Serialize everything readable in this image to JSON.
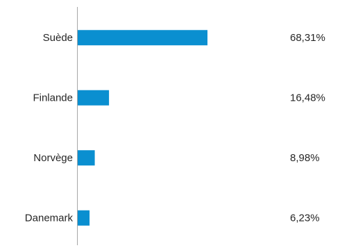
{
  "chart_data": {
    "type": "bar",
    "orientation": "horizontal",
    "categories": [
      "Suède",
      "Finlande",
      "Norvège",
      "Danemark"
    ],
    "values": [
      68.31,
      16.48,
      8.98,
      6.23
    ],
    "value_labels": [
      "68,31%",
      "16,48%",
      "8,98%",
      "6,23%"
    ],
    "unit": "%",
    "title": "",
    "xlabel": "",
    "ylabel": "",
    "xlim": [
      0,
      68.31
    ],
    "grid": false,
    "legend": "none",
    "bar_color": "#0A8FD0",
    "axis_color": "#A6A6A6",
    "text_color": "#262626"
  }
}
